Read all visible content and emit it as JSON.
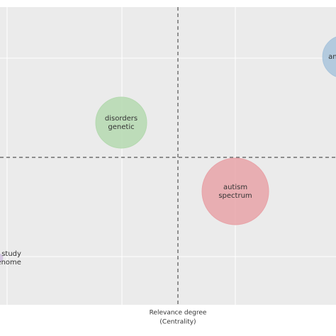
{
  "chart_data": {
    "type": "bubble",
    "x_label": [
      "Relevance degree",
      "(Centrality)"
    ],
    "xlim": [
      0,
      100
    ],
    "ylim": [
      0,
      100
    ],
    "series": [
      {
        "name": [
          "an"
        ],
        "color": "#a9c4dc",
        "x": 102.4,
        "y": 83.3,
        "size": 30
      },
      {
        "name": [
          "disorders",
          "genetic"
        ],
        "color": "#b5d9b0",
        "x": 34.7,
        "y": 61.2,
        "size": 36
      },
      {
        "name": [
          "autism",
          "spectrum"
        ],
        "color": "#e8a3a8",
        "x": 69.4,
        "y": 38.1,
        "size": 47
      },
      {
        "name": [
          "study",
          "genome"
        ],
        "color": "#d2c3e0",
        "x": -2.6,
        "y": 15.7,
        "size": 6
      }
    ]
  }
}
